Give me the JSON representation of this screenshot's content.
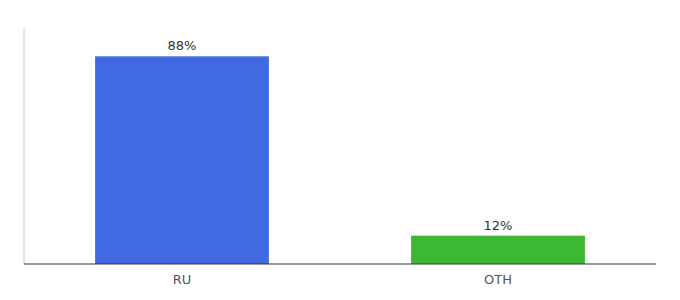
{
  "chart_data": {
    "type": "bar",
    "categories": [
      "RU",
      "OTH"
    ],
    "values": [
      88,
      12
    ],
    "value_labels": [
      "88%",
      "12%"
    ],
    "colors": [
      "#4169e1",
      "#3cb832"
    ],
    "ylim": [
      0,
      100
    ],
    "data_labels": true,
    "tick_labels": "x",
    "grid": false
  }
}
